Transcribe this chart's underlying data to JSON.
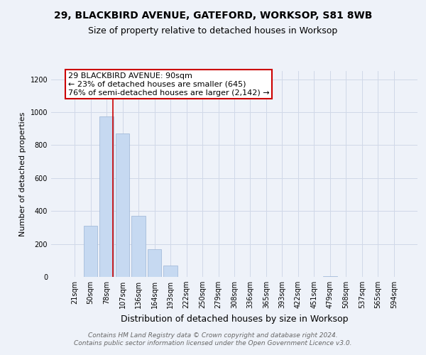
{
  "title": "29, BLACKBIRD AVENUE, GATEFORD, WORKSOP, S81 8WB",
  "subtitle": "Size of property relative to detached houses in Worksop",
  "xlabel": "Distribution of detached houses by size in Worksop",
  "ylabel": "Number of detached properties",
  "bin_labels": [
    "21sqm",
    "50sqm",
    "78sqm",
    "107sqm",
    "136sqm",
    "164sqm",
    "193sqm",
    "222sqm",
    "250sqm",
    "279sqm",
    "308sqm",
    "336sqm",
    "365sqm",
    "393sqm",
    "422sqm",
    "451sqm",
    "479sqm",
    "508sqm",
    "537sqm",
    "565sqm",
    "594sqm"
  ],
  "bar_heights": [
    0,
    310,
    975,
    870,
    370,
    170,
    70,
    0,
    0,
    0,
    0,
    0,
    0,
    0,
    0,
    0,
    5,
    0,
    0,
    0,
    0
  ],
  "bar_color": "#c6d9f1",
  "bar_edge_color": "#9ab3d5",
  "grid_color": "#d0d8e8",
  "background_color": "#eef2f9",
  "ylim": [
    0,
    1250
  ],
  "yticks": [
    0,
    200,
    400,
    600,
    800,
    1000,
    1200
  ],
  "property_size_sqm": 90,
  "vline_x_index": 2.42,
  "annotation_text": "29 BLACKBIRD AVENUE: 90sqm\n← 23% of detached houses are smaller (645)\n76% of semi-detached houses are larger (2,142) →",
  "annotation_box_color": "#cc0000",
  "vline_color": "#cc0000",
  "footer_line1": "Contains HM Land Registry data © Crown copyright and database right 2024.",
  "footer_line2": "Contains public sector information licensed under the Open Government Licence v3.0.",
  "title_fontsize": 10,
  "subtitle_fontsize": 9,
  "xlabel_fontsize": 9,
  "ylabel_fontsize": 8,
  "tick_fontsize": 7,
  "footer_fontsize": 6.5,
  "annotation_fontsize": 8
}
